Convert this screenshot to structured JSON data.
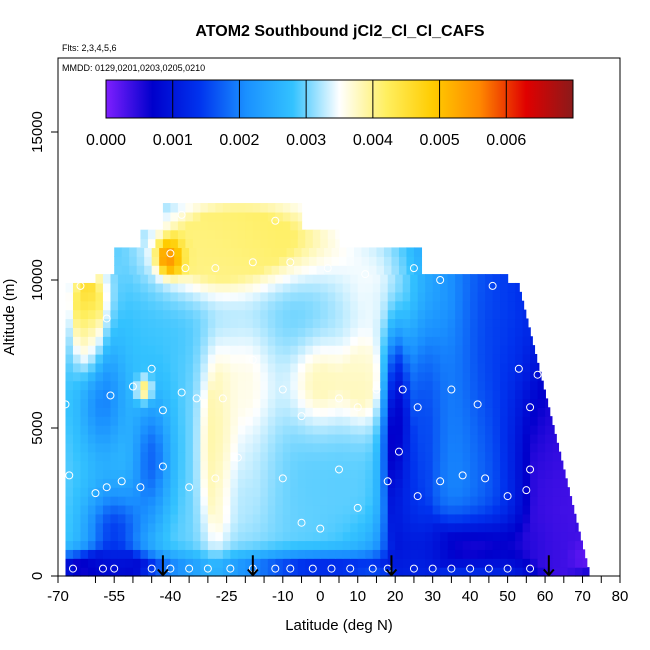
{
  "chart_data": {
    "type": "heatmap",
    "title": "ATOM2 Southbound jCl2_Cl_Cl_CAFS",
    "subtitle_flights": "Flts: 2,3,4,5,6",
    "subtitle_dates": "MMDD: 0129,0201,0203,0205,0210",
    "xlabel": "Latitude (deg N)",
    "ylabel": "Altitude (m)",
    "xlim": [
      -70,
      80
    ],
    "ylim": [
      0,
      17500
    ],
    "x_ticks": [
      -70,
      -55,
      -40,
      -25,
      -10,
      0,
      10,
      20,
      30,
      40,
      50,
      60,
      70,
      80
    ],
    "x_tick_labels": [
      "-70",
      "-55",
      "-40",
      "-25",
      "-10",
      "0",
      "10",
      "20",
      "30",
      "40",
      "50",
      "60",
      "70",
      "80"
    ],
    "x_minor_ticks": [
      -60,
      -50,
      -45,
      -35,
      -30,
      -20,
      -15,
      -5,
      5,
      15,
      25,
      35,
      45,
      55,
      65,
      75
    ],
    "y_ticks": [
      0,
      5000,
      10000,
      15000
    ],
    "y_tick_labels": [
      "0",
      "5000",
      "10000",
      "15000"
    ],
    "colorbar": {
      "range": [
        0,
        0.007
      ],
      "ticks": [
        0.0,
        0.001,
        0.002,
        0.003,
        0.004,
        0.005,
        0.006
      ],
      "tick_labels": [
        "0.000",
        "0.001",
        "0.002",
        "0.003",
        "0.004",
        "0.005",
        "0.006"
      ],
      "colors": [
        "#7f1fff",
        "#0000cc",
        "#0033ee",
        "#1a90ff",
        "#33c2ff",
        "#ffffff",
        "#ffef60",
        "#ffcc00",
        "#ff8800",
        "#e00000",
        "#8b1a1a"
      ]
    },
    "field": {
      "lat_range": [
        -68,
        72
      ],
      "alt_range": [
        0,
        12500
      ],
      "anchors": [
        {
          "lat": -40,
          "alt": 10800,
          "value": 0.0066,
          "w": 3,
          "h": 500
        },
        {
          "lat": -62,
          "alt": 9500,
          "value": 0.0046,
          "w": 5,
          "h": 1200
        },
        {
          "lat": -62,
          "alt": 8000,
          "value": 0.004,
          "w": 4,
          "h": 1200
        },
        {
          "lat": -15,
          "alt": 11500,
          "value": 0.0042,
          "w": 22,
          "h": 1500
        },
        {
          "lat": -30,
          "alt": 11000,
          "value": 0.004,
          "w": 15,
          "h": 1400
        },
        {
          "lat": -47,
          "alt": 6300,
          "value": 0.0046,
          "w": 2,
          "h": 400
        },
        {
          "lat": -28,
          "alt": 4000,
          "value": 0.004,
          "w": 4,
          "h": 3000
        },
        {
          "lat": -20,
          "alt": 6500,
          "value": 0.0036,
          "w": 10,
          "h": 2500
        },
        {
          "lat": 0,
          "alt": 6500,
          "value": 0.0038,
          "w": 8,
          "h": 1500
        },
        {
          "lat": 12,
          "alt": 6500,
          "value": 0.0038,
          "w": 6,
          "h": 1500
        },
        {
          "lat": -20,
          "alt": 2500,
          "value": 0.0032,
          "w": 8,
          "h": 2000
        },
        {
          "lat": 15,
          "alt": 9500,
          "value": 0.0034,
          "w": 14,
          "h": 2000
        },
        {
          "lat": -58,
          "alt": 6000,
          "value": 0.002,
          "w": 6,
          "h": 2000
        },
        {
          "lat": -45,
          "alt": 4000,
          "value": 0.0018,
          "w": 5,
          "h": 2000
        },
        {
          "lat": -55,
          "alt": 1500,
          "value": 0.0015,
          "w": 8,
          "h": 1500
        },
        {
          "lat": -60,
          "alt": 300,
          "value": 0.0005,
          "w": 20,
          "h": 500
        },
        {
          "lat": 20,
          "alt": 5500,
          "value": 0.0002,
          "w": 3,
          "h": 2500
        },
        {
          "lat": 22,
          "alt": 2500,
          "value": 0.0012,
          "w": 5,
          "h": 2000
        },
        {
          "lat": 28,
          "alt": 5000,
          "value": 0.0016,
          "w": 6,
          "h": 5000
        },
        {
          "lat": 50,
          "alt": 8000,
          "value": 0.0015,
          "w": 10,
          "h": 3000
        },
        {
          "lat": 60,
          "alt": 4000,
          "value": 0.0004,
          "w": 8,
          "h": 4000
        },
        {
          "lat": 65,
          "alt": 1500,
          "value": 0.0003,
          "w": 6,
          "h": 2000
        },
        {
          "lat": 40,
          "alt": 1000,
          "value": 0.0006,
          "w": 20,
          "h": 1000
        },
        {
          "lat": 0,
          "alt": 300,
          "value": 0.0012,
          "w": 25,
          "h": 500
        },
        {
          "lat": 70,
          "alt": 700,
          "value": 0.0001,
          "w": 3,
          "h": 400
        }
      ]
    },
    "observations": [
      {
        "lat": -66,
        "alt": 250
      },
      {
        "lat": -58,
        "alt": 250
      },
      {
        "lat": -55,
        "alt": 250
      },
      {
        "lat": -45,
        "alt": 250
      },
      {
        "lat": -40,
        "alt": 250
      },
      {
        "lat": -35,
        "alt": 250
      },
      {
        "lat": -30,
        "alt": 250
      },
      {
        "lat": -24,
        "alt": 250
      },
      {
        "lat": -18,
        "alt": 250
      },
      {
        "lat": -12,
        "alt": 250
      },
      {
        "lat": -8,
        "alt": 250
      },
      {
        "lat": -2,
        "alt": 250
      },
      {
        "lat": 3,
        "alt": 250
      },
      {
        "lat": 8,
        "alt": 250
      },
      {
        "lat": 14,
        "alt": 250
      },
      {
        "lat": 18,
        "alt": 250
      },
      {
        "lat": 25,
        "alt": 250
      },
      {
        "lat": 30,
        "alt": 250
      },
      {
        "lat": 35,
        "alt": 250
      },
      {
        "lat": 40,
        "alt": 250
      },
      {
        "lat": 45,
        "alt": 250
      },
      {
        "lat": 50,
        "alt": 250
      },
      {
        "lat": 56,
        "alt": 250
      },
      {
        "lat": -67,
        "alt": 3400
      },
      {
        "lat": -60,
        "alt": 2800
      },
      {
        "lat": -57,
        "alt": 3000
      },
      {
        "lat": -53,
        "alt": 3200
      },
      {
        "lat": -48,
        "alt": 3000
      },
      {
        "lat": -42,
        "alt": 3700
      },
      {
        "lat": -35,
        "alt": 3000
      },
      {
        "lat": -28,
        "alt": 3300
      },
      {
        "lat": -22,
        "alt": 4000
      },
      {
        "lat": -10,
        "alt": 3300
      },
      {
        "lat": -5,
        "alt": 1800
      },
      {
        "lat": 0,
        "alt": 1600
      },
      {
        "lat": 5,
        "alt": 3600
      },
      {
        "lat": 10,
        "alt": 2300
      },
      {
        "lat": 18,
        "alt": 3200
      },
      {
        "lat": 21,
        "alt": 4200
      },
      {
        "lat": 26,
        "alt": 2700
      },
      {
        "lat": 32,
        "alt": 3200
      },
      {
        "lat": 38,
        "alt": 3400
      },
      {
        "lat": 44,
        "alt": 3300
      },
      {
        "lat": 50,
        "alt": 2700
      },
      {
        "lat": 55,
        "alt": 2900
      },
      {
        "lat": 56,
        "alt": 3600
      },
      {
        "lat": -68,
        "alt": 5800
      },
      {
        "lat": -56,
        "alt": 6100
      },
      {
        "lat": -50,
        "alt": 6400
      },
      {
        "lat": -45,
        "alt": 7000
      },
      {
        "lat": -42,
        "alt": 5600
      },
      {
        "lat": -37,
        "alt": 6200
      },
      {
        "lat": -33,
        "alt": 6000
      },
      {
        "lat": -26,
        "alt": 6000
      },
      {
        "lat": -18,
        "alt": 7300
      },
      {
        "lat": -10,
        "alt": 6300
      },
      {
        "lat": -5,
        "alt": 5400
      },
      {
        "lat": 5,
        "alt": 6000
      },
      {
        "lat": 10,
        "alt": 5700
      },
      {
        "lat": 15,
        "alt": 6300
      },
      {
        "lat": 22,
        "alt": 6300
      },
      {
        "lat": 26,
        "alt": 5700
      },
      {
        "lat": 35,
        "alt": 6300
      },
      {
        "lat": 42,
        "alt": 5800
      },
      {
        "lat": 53,
        "alt": 7000
      },
      {
        "lat": 58,
        "alt": 6800
      },
      {
        "lat": 56,
        "alt": 5700
      },
      {
        "lat": -64,
        "alt": 9800
      },
      {
        "lat": -57,
        "alt": 8700
      },
      {
        "lat": -40,
        "alt": 10900
      },
      {
        "lat": -36,
        "alt": 10400
      },
      {
        "lat": -28,
        "alt": 10400
      },
      {
        "lat": -18,
        "alt": 10600
      },
      {
        "lat": -8,
        "alt": 10600
      },
      {
        "lat": 2,
        "alt": 10400
      },
      {
        "lat": 12,
        "alt": 10200
      },
      {
        "lat": 25,
        "alt": 10400
      },
      {
        "lat": 32,
        "alt": 10000
      },
      {
        "lat": 38,
        "alt": 10400
      },
      {
        "lat": 46,
        "alt": 9800
      },
      {
        "lat": 52,
        "alt": 10500
      },
      {
        "lat": -12,
        "alt": 12000
      },
      {
        "lat": -37,
        "alt": 12200
      }
    ],
    "arrows_lat": [
      -42,
      -18,
      19,
      61
    ]
  }
}
